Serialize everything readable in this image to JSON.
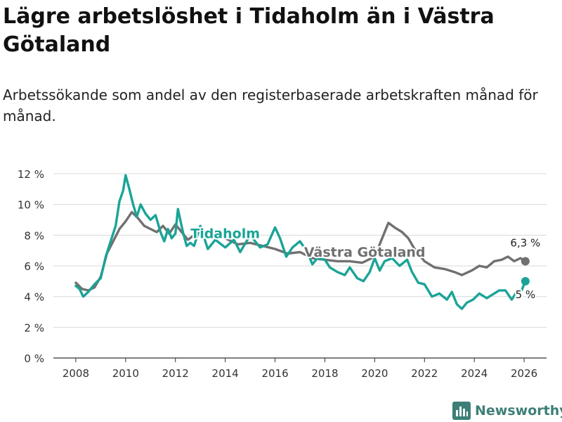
{
  "header": {
    "title": "Lägre arbetslöshet i Tidaholm än i Västra Götaland",
    "subtitle": "Arbetssökande som andel av den registerbaserade arbetskraften månad för månad."
  },
  "brand": {
    "name": "Newsworthy",
    "logo_icon": "bar-chart-icon"
  },
  "colors": {
    "tidaholm": "#1aa497",
    "vastra_gotaland": "#707070",
    "gridline": "#d9d9d9",
    "axis": "#333333",
    "brand": "#3d7f77"
  },
  "chart_data": {
    "type": "line",
    "title": "Lägre arbetslöshet i Tidaholm än i Västra Götaland",
    "xlabel": "",
    "ylabel": "",
    "xlim": [
      2007.1,
      2026.9
    ],
    "ylim": [
      0,
      12
    ],
    "x_ticks": [
      2008,
      2010,
      2012,
      2014,
      2016,
      2018,
      2020,
      2022,
      2024,
      2026
    ],
    "x_tick_labels": [
      "2008",
      "2010",
      "2012",
      "2014",
      "2016",
      "2018",
      "2020",
      "2022",
      "2024",
      "2026"
    ],
    "y_ticks": [
      0,
      2,
      4,
      6,
      8,
      10,
      12
    ],
    "y_tick_labels": [
      "0 %",
      "2 %",
      "4 %",
      "6 %",
      "8 %",
      "10 %",
      "12 %"
    ],
    "grid": true,
    "series": [
      {
        "name": "Västra Götaland",
        "label": "Västra Götaland",
        "end_label": "6,3 %",
        "end_value": 6.3,
        "points": [
          [
            2008.0,
            4.9
          ],
          [
            2008.25,
            4.5
          ],
          [
            2008.5,
            4.4
          ],
          [
            2008.75,
            4.6
          ],
          [
            2009.0,
            5.3
          ],
          [
            2009.25,
            6.8
          ],
          [
            2009.5,
            7.6
          ],
          [
            2009.75,
            8.4
          ],
          [
            2010.0,
            8.9
          ],
          [
            2010.25,
            9.5
          ],
          [
            2010.5,
            9.1
          ],
          [
            2010.75,
            8.6
          ],
          [
            2011.0,
            8.4
          ],
          [
            2011.25,
            8.2
          ],
          [
            2011.5,
            8.6
          ],
          [
            2011.75,
            8.1
          ],
          [
            2012.0,
            8.7
          ],
          [
            2012.25,
            8.2
          ],
          [
            2012.5,
            7.7
          ],
          [
            2012.75,
            8.0
          ],
          [
            2013.0,
            8.3
          ],
          [
            2013.5,
            8.1
          ],
          [
            2014.0,
            7.8
          ],
          [
            2014.5,
            7.4
          ],
          [
            2015.0,
            7.5
          ],
          [
            2015.5,
            7.3
          ],
          [
            2016.0,
            7.1
          ],
          [
            2016.5,
            6.8
          ],
          [
            2017.0,
            6.9
          ],
          [
            2017.5,
            6.5
          ],
          [
            2018.0,
            6.4
          ],
          [
            2018.5,
            6.3
          ],
          [
            2019.0,
            6.3
          ],
          [
            2019.5,
            6.2
          ],
          [
            2020.0,
            6.6
          ],
          [
            2020.3,
            7.8
          ],
          [
            2020.55,
            8.8
          ],
          [
            2020.8,
            8.5
          ],
          [
            2021.1,
            8.2
          ],
          [
            2021.35,
            7.8
          ],
          [
            2021.6,
            7.1
          ],
          [
            2022.0,
            6.3
          ],
          [
            2022.4,
            5.9
          ],
          [
            2022.8,
            5.8
          ],
          [
            2023.2,
            5.6
          ],
          [
            2023.5,
            5.4
          ],
          [
            2023.9,
            5.7
          ],
          [
            2024.2,
            6.0
          ],
          [
            2024.5,
            5.9
          ],
          [
            2024.8,
            6.3
          ],
          [
            2025.1,
            6.4
          ],
          [
            2025.35,
            6.6
          ],
          [
            2025.6,
            6.3
          ],
          [
            2025.85,
            6.5
          ],
          [
            2026.05,
            6.3
          ]
        ]
      },
      {
        "name": "Tidaholm",
        "label": "Tidaholm",
        "end_label": "5 %",
        "end_value": 5.0,
        "points": [
          [
            2008.0,
            4.7
          ],
          [
            2008.15,
            4.5
          ],
          [
            2008.3,
            4.0
          ],
          [
            2008.5,
            4.3
          ],
          [
            2008.75,
            4.8
          ],
          [
            2009.0,
            5.2
          ],
          [
            2009.2,
            6.6
          ],
          [
            2009.4,
            7.6
          ],
          [
            2009.6,
            8.6
          ],
          [
            2009.75,
            10.2
          ],
          [
            2009.9,
            10.9
          ],
          [
            2010.0,
            11.9
          ],
          [
            2010.15,
            11.0
          ],
          [
            2010.3,
            10.0
          ],
          [
            2010.45,
            9.2
          ],
          [
            2010.6,
            10.0
          ],
          [
            2010.8,
            9.4
          ],
          [
            2011.0,
            9.0
          ],
          [
            2011.2,
            9.3
          ],
          [
            2011.4,
            8.2
          ],
          [
            2011.55,
            7.6
          ],
          [
            2011.7,
            8.4
          ],
          [
            2011.85,
            7.8
          ],
          [
            2012.0,
            8.1
          ],
          [
            2012.1,
            9.7
          ],
          [
            2012.3,
            8.2
          ],
          [
            2012.45,
            7.3
          ],
          [
            2012.6,
            7.5
          ],
          [
            2012.75,
            7.3
          ],
          [
            2013.0,
            8.6
          ],
          [
            2013.3,
            7.1
          ],
          [
            2013.6,
            7.7
          ],
          [
            2014.0,
            7.2
          ],
          [
            2014.35,
            7.7
          ],
          [
            2014.6,
            6.9
          ],
          [
            2015.0,
            8.0
          ],
          [
            2015.4,
            7.2
          ],
          [
            2015.7,
            7.4
          ],
          [
            2016.0,
            8.5
          ],
          [
            2016.2,
            7.8
          ],
          [
            2016.45,
            6.6
          ],
          [
            2016.7,
            7.2
          ],
          [
            2017.0,
            7.6
          ],
          [
            2017.3,
            6.9
          ],
          [
            2017.5,
            6.1
          ],
          [
            2017.7,
            6.5
          ],
          [
            2018.0,
            6.4
          ],
          [
            2018.2,
            5.9
          ],
          [
            2018.5,
            5.6
          ],
          [
            2018.8,
            5.4
          ],
          [
            2019.0,
            5.9
          ],
          [
            2019.3,
            5.2
          ],
          [
            2019.55,
            5.0
          ],
          [
            2019.8,
            5.6
          ],
          [
            2020.0,
            6.5
          ],
          [
            2020.2,
            5.7
          ],
          [
            2020.4,
            6.3
          ],
          [
            2020.7,
            6.5
          ],
          [
            2021.0,
            6.0
          ],
          [
            2021.3,
            6.4
          ],
          [
            2021.5,
            5.6
          ],
          [
            2021.75,
            4.9
          ],
          [
            2022.0,
            4.8
          ],
          [
            2022.3,
            4.0
          ],
          [
            2022.6,
            4.2
          ],
          [
            2022.9,
            3.8
          ],
          [
            2023.1,
            4.3
          ],
          [
            2023.3,
            3.5
          ],
          [
            2023.5,
            3.2
          ],
          [
            2023.7,
            3.6
          ],
          [
            2023.95,
            3.8
          ],
          [
            2024.2,
            4.2
          ],
          [
            2024.5,
            3.9
          ],
          [
            2024.8,
            4.2
          ],
          [
            2025.0,
            4.4
          ],
          [
            2025.25,
            4.4
          ],
          [
            2025.5,
            3.8
          ],
          [
            2025.7,
            4.3
          ],
          [
            2025.9,
            4.4
          ],
          [
            2026.05,
            5.0
          ]
        ]
      }
    ]
  }
}
